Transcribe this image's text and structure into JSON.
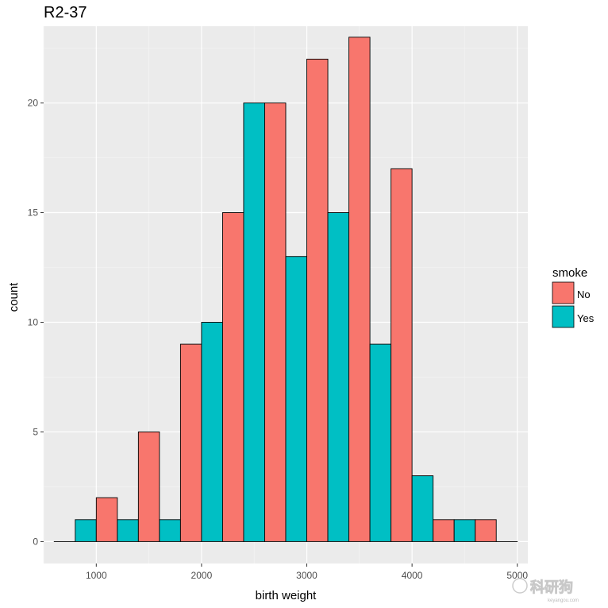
{
  "chart_data": {
    "type": "bar",
    "title": "R2-37",
    "xlabel": "birth weight",
    "ylabel": "count",
    "xlim": [
      500,
      5100
    ],
    "ylim": [
      -1,
      23.5
    ],
    "x_ticks": [
      1000,
      2000,
      3000,
      4000,
      5000
    ],
    "x_tick_labels": [
      "1000",
      "2000",
      "3000",
      "4000",
      "5000"
    ],
    "y_ticks": [
      0,
      5,
      10,
      15,
      20
    ],
    "y_tick_labels": [
      "0",
      "5",
      "10",
      "15",
      "20"
    ],
    "bin_width": 400,
    "bin_centers": [
      800,
      1200,
      1600,
      2000,
      2400,
      2800,
      3200,
      3600,
      4000,
      4400,
      4800
    ],
    "position": "dodge",
    "series": [
      {
        "name": "No",
        "color": "#F8766D",
        "values": [
          0,
          2,
          5,
          9,
          15,
          20,
          22,
          23,
          17,
          1,
          1
        ]
      },
      {
        "name": "Yes",
        "color": "#00BFC4",
        "values": [
          1,
          1,
          1,
          10,
          20,
          13,
          15,
          9,
          3,
          1,
          0
        ]
      }
    ],
    "legend": {
      "title": "smoke",
      "placement": "right",
      "entries": [
        "No",
        "Yes"
      ]
    },
    "grid": true,
    "panel_background": "#EBEBEB"
  },
  "watermark": {
    "text": "科研狗",
    "sub": "keyangou.com"
  }
}
